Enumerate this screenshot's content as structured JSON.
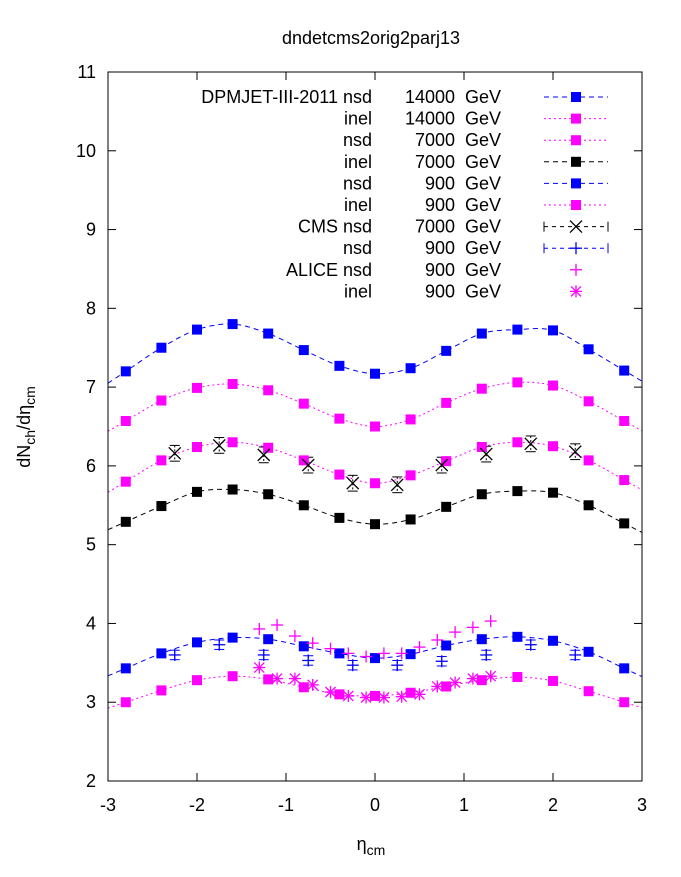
{
  "chart_data": {
    "type": "scatter",
    "title": "dndetcms2orig2parj13",
    "xlabel": "η",
    "xlabel_sub": "cm",
    "ylabel_parts": [
      "dN",
      "ch",
      "/dη",
      "cm"
    ],
    "xlim": [
      -3,
      3
    ],
    "ylim": [
      2,
      11
    ],
    "xticks": [
      -3,
      -2,
      -1,
      0,
      1,
      2,
      3
    ],
    "yticks": [
      2,
      3,
      4,
      5,
      6,
      7,
      8,
      9,
      10,
      11
    ],
    "grid": false,
    "legend_placement": "top-right",
    "model_x": [
      -2.8,
      -2.4,
      -2.0,
      -1.6,
      -1.2,
      -0.8,
      -0.4,
      0.0,
      0.4,
      0.8,
      1.2,
      1.6,
      2.0,
      2.4,
      2.8
    ],
    "series": [
      {
        "key": "dpm_nsd_14000",
        "group": "DPMJET-III-2011",
        "proc": "nsd",
        "energy": "14000",
        "unit": "GeV",
        "color": "#0000ff",
        "marker": "square",
        "line": "dashed",
        "values": [
          7.2,
          7.5,
          7.73,
          7.8,
          7.68,
          7.47,
          7.27,
          7.17,
          7.24,
          7.46,
          7.68,
          7.73,
          7.72,
          7.48,
          7.21
        ]
      },
      {
        "key": "dpm_inel_14000",
        "group": "",
        "proc": "inel",
        "energy": "14000",
        "unit": "GeV",
        "color": "#ff00ff",
        "marker": "square",
        "line": "dotted",
        "values": [
          6.57,
          6.83,
          6.99,
          7.04,
          6.96,
          6.79,
          6.6,
          6.5,
          6.59,
          6.8,
          6.98,
          7.06,
          7.02,
          6.82,
          6.57
        ]
      },
      {
        "key": "dpm_nsd_7000",
        "group": "",
        "proc": "nsd",
        "energy": "7000",
        "unit": "GeV",
        "color": "#ff00ff",
        "marker": "square",
        "line": "dotted",
        "values": [
          5.8,
          6.07,
          6.24,
          6.3,
          6.23,
          6.07,
          5.89,
          5.78,
          5.88,
          6.06,
          6.24,
          6.3,
          6.25,
          6.07,
          5.82
        ]
      },
      {
        "key": "dpm_inel_7000",
        "group": "",
        "proc": "inel",
        "energy": "7000",
        "unit": "GeV",
        "color": "#000000",
        "marker": "square",
        "line": "dashed",
        "values": [
          5.29,
          5.49,
          5.67,
          5.7,
          5.64,
          5.5,
          5.34,
          5.26,
          5.32,
          5.48,
          5.64,
          5.68,
          5.66,
          5.5,
          5.27
        ]
      },
      {
        "key": "dpm_nsd_900",
        "group": "",
        "proc": "nsd",
        "energy": "900",
        "unit": "GeV",
        "color": "#0000ff",
        "marker": "square",
        "line": "dashed",
        "values": [
          3.43,
          3.62,
          3.76,
          3.82,
          3.8,
          3.71,
          3.62,
          3.56,
          3.61,
          3.72,
          3.8,
          3.83,
          3.78,
          3.64,
          3.43
        ]
      },
      {
        "key": "dpm_inel_900",
        "group": "",
        "proc": "inel",
        "energy": "900",
        "unit": "GeV",
        "color": "#ff00ff",
        "marker": "square",
        "line": "dotted",
        "values": [
          3.0,
          3.15,
          3.28,
          3.33,
          3.29,
          3.19,
          3.1,
          3.08,
          3.12,
          3.2,
          3.28,
          3.32,
          3.27,
          3.14,
          3.0
        ]
      },
      {
        "key": "cms_nsd_7000",
        "group": "CMS",
        "proc": "nsd",
        "energy": "7000",
        "unit": "GeV",
        "color": "#000000",
        "marker": "x",
        "line": "errorbar",
        "x": [
          -2.25,
          -1.75,
          -1.25,
          -0.75,
          -0.25,
          0.25,
          0.75,
          1.25,
          1.75,
          2.25
        ],
        "values": [
          6.16,
          6.26,
          6.14,
          6.01,
          5.78,
          5.76,
          6.01,
          6.15,
          6.28,
          6.18
        ],
        "err": 0.1
      },
      {
        "key": "cms_nsd_900",
        "group": "",
        "proc": "nsd",
        "energy": "900",
        "unit": "GeV",
        "color": "#0000ff",
        "marker": "plus",
        "line": "errorbar",
        "x": [
          -2.25,
          -1.75,
          -1.25,
          -0.75,
          -0.25,
          0.25,
          0.75,
          1.25,
          1.75,
          2.25
        ],
        "values": [
          3.6,
          3.73,
          3.6,
          3.53,
          3.47,
          3.47,
          3.52,
          3.6,
          3.73,
          3.6
        ],
        "err": 0.06
      },
      {
        "key": "alice_nsd_900",
        "group": "ALICE",
        "proc": "nsd",
        "energy": "900",
        "unit": "GeV",
        "color": "#ff00ff",
        "marker": "plus",
        "line": "none",
        "x": [
          -1.3,
          -1.1,
          -0.9,
          -0.7,
          -0.5,
          -0.3,
          -0.1,
          0.1,
          0.3,
          0.5,
          0.7,
          0.9,
          1.1,
          1.3
        ],
        "values": [
          3.93,
          3.98,
          3.84,
          3.75,
          3.68,
          3.62,
          3.58,
          3.62,
          3.62,
          3.7,
          3.79,
          3.89,
          3.95,
          4.03
        ]
      },
      {
        "key": "alice_inel_900",
        "group": "",
        "proc": "inel",
        "energy": "900",
        "unit": "GeV",
        "color": "#ff00ff",
        "marker": "star",
        "line": "none",
        "x": [
          -1.3,
          -1.1,
          -0.9,
          -0.7,
          -0.5,
          -0.3,
          -0.1,
          0.1,
          0.3,
          0.5,
          0.7,
          0.9,
          1.1,
          1.3
        ],
        "values": [
          3.44,
          3.3,
          3.3,
          3.22,
          3.13,
          3.08,
          3.06,
          3.06,
          3.07,
          3.1,
          3.2,
          3.25,
          3.3,
          3.33
        ]
      }
    ]
  }
}
